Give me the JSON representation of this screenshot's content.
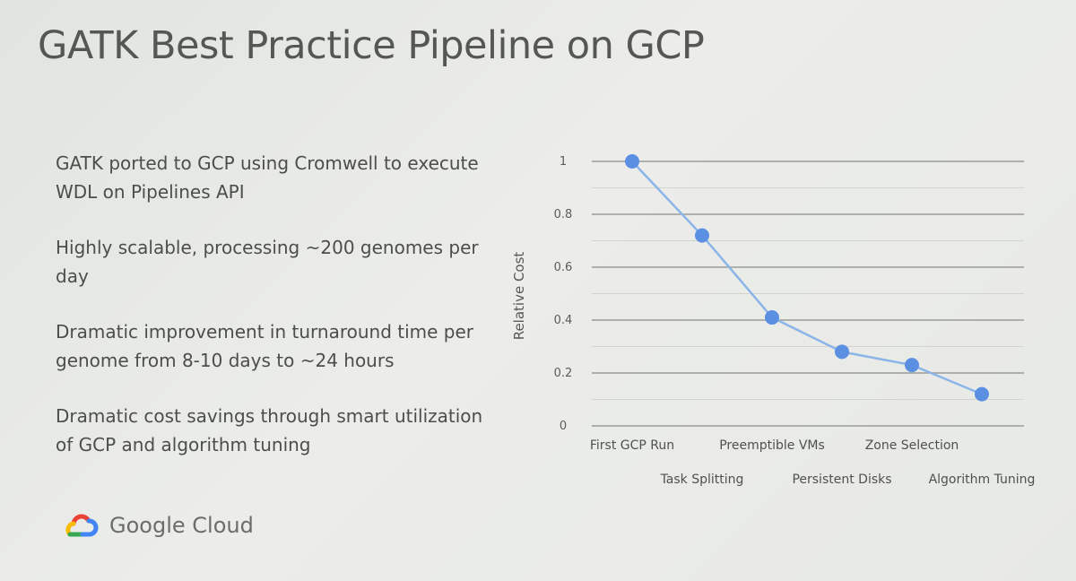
{
  "slide": {
    "title": "GATK Best Practice Pipeline on GCP",
    "bullets": [
      "GATK ported to GCP using Cromwell to execute WDL on Pipelines API",
      "Highly scalable, processing ~200 genomes per day",
      "Dramatic improvement in turnaround time per genome from 8-10 days to ~24 hours",
      "Dramatic cost savings through smart utilization of GCP and algorithm tuning"
    ]
  },
  "brand": {
    "name": "Google Cloud",
    "logo_icon": "google-cloud-logo-icon",
    "logo_colors": [
      "#ea4335",
      "#fbbc04",
      "#34a853",
      "#4285f4"
    ]
  },
  "chart_data": {
    "type": "line",
    "categories": [
      "First GCP Run",
      "Task Splitting",
      "Preemptible VMs",
      "Persistent Disks",
      "Zone Selection",
      "Algorithm Tuning"
    ],
    "values": [
      1.0,
      0.72,
      0.41,
      0.28,
      0.23,
      0.12
    ],
    "ylabel": "Relative Cost",
    "xlabel": "",
    "ylim": [
      0,
      1
    ],
    "yticks": [
      0,
      0.2,
      0.4,
      0.6,
      0.8,
      1
    ],
    "ytick_labels": [
      "0",
      "0.2",
      "0.4",
      "0.6",
      "0.8",
      "1"
    ],
    "grid": true,
    "legend": "none",
    "colors": {
      "line": "#8bb5e8",
      "marker": "#5b8fe2",
      "grid": "#9a9c9a",
      "minor_grid": "#d2d4d0"
    }
  }
}
